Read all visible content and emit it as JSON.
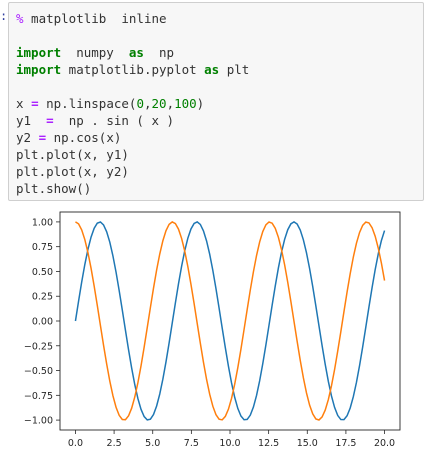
{
  "notebook": {
    "prompt_fragment": ":",
    "code_lines": [
      [
        {
          "t": "%",
          "c": "magic"
        },
        {
          "t": " matplotlib  inline",
          "c": ""
        }
      ],
      [
        {
          "t": "",
          "c": ""
        }
      ],
      [
        {
          "t": "import",
          "c": "kw"
        },
        {
          "t": "  numpy  ",
          "c": ""
        },
        {
          "t": "as",
          "c": "kw"
        },
        {
          "t": "  np",
          "c": ""
        }
      ],
      [
        {
          "t": "import",
          "c": "kw"
        },
        {
          "t": " matplotlib.pyplot ",
          "c": ""
        },
        {
          "t": "as",
          "c": "kw"
        },
        {
          "t": " plt",
          "c": ""
        }
      ],
      [
        {
          "t": "",
          "c": ""
        }
      ],
      [
        {
          "t": "x ",
          "c": ""
        },
        {
          "t": "=",
          "c": "op"
        },
        {
          "t": " np.linspace(",
          "c": ""
        },
        {
          "t": "0",
          "c": "num"
        },
        {
          "t": ",",
          "c": ""
        },
        {
          "t": "20",
          "c": "num"
        },
        {
          "t": ",",
          "c": ""
        },
        {
          "t": "100",
          "c": "num"
        },
        {
          "t": ")",
          "c": ""
        }
      ],
      [
        {
          "t": "y1  ",
          "c": ""
        },
        {
          "t": "=",
          "c": "op"
        },
        {
          "t": "  np . sin ( x )",
          "c": ""
        }
      ],
      [
        {
          "t": "y2 ",
          "c": ""
        },
        {
          "t": "=",
          "c": "op"
        },
        {
          "t": " np.cos(x)",
          "c": ""
        }
      ],
      [
        {
          "t": "plt.plot(x, y1)",
          "c": ""
        }
      ],
      [
        {
          "t": "plt.plot(x, y2)",
          "c": ""
        }
      ],
      [
        {
          "t": "plt.show()",
          "c": ""
        }
      ]
    ]
  },
  "chart_data": {
    "type": "line",
    "x_function": "linspace(0, 20, 100)",
    "series": [
      {
        "function": "sin",
        "color": "#1f77b4"
      },
      {
        "function": "cos",
        "color": "#ff7f0e"
      }
    ],
    "xlim": [
      -1,
      21
    ],
    "ylim": [
      -1.1,
      1.1
    ],
    "xticks": [
      "0.0",
      "2.5",
      "5.0",
      "7.5",
      "10.0",
      "12.5",
      "15.0",
      "17.5",
      "20.0"
    ],
    "yticks": [
      "1.00",
      "0.75",
      "0.50",
      "0.25",
      "0.00",
      "−0.25",
      "−0.50",
      "−0.75",
      "−1.00"
    ],
    "grid": false
  }
}
